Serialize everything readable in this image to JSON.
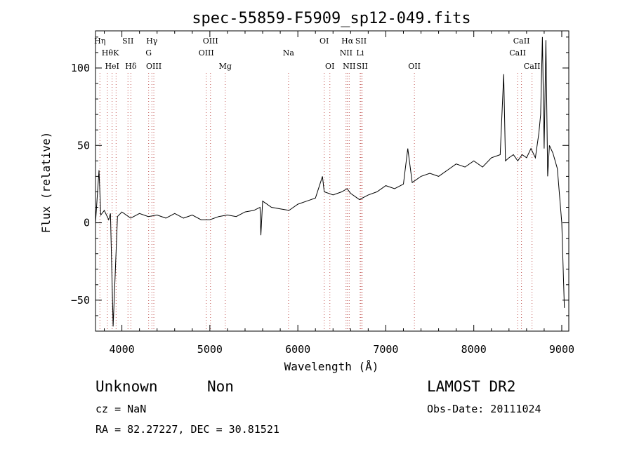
{
  "chart_data": {
    "type": "line",
    "title": "spec-55859-F5909_sp12-049.fits",
    "xlabel": "Wavelength (Å)",
    "ylabel": "Flux (relative)",
    "xlim": [
      3700,
      9080
    ],
    "ylim": [
      -70,
      124
    ],
    "xticks": [
      4000,
      5000,
      6000,
      7000,
      8000,
      9000
    ],
    "yticks": [
      -50,
      0,
      50,
      100
    ],
    "grid": false,
    "line_color": "#000000",
    "marker_color": "#c0504d",
    "series": [
      {
        "x": [
          3700,
          3740,
          3760,
          3800,
          3850,
          3870,
          3900,
          3950,
          4000,
          4100,
          4200,
          4300,
          4400,
          4500,
          4600,
          4700,
          4800,
          4900,
          5000,
          5100,
          5200,
          5300,
          5400,
          5500,
          5570,
          5580,
          5600,
          5700,
          5800,
          5900,
          6000,
          6100,
          6200,
          6280,
          6300,
          6400,
          6500,
          6560,
          6600,
          6700,
          6800,
          6900,
          7000,
          7100,
          7200,
          7250,
          7300,
          7400,
          7500,
          7600,
          7700,
          7800,
          7900,
          8000,
          8100,
          8200,
          8300,
          8340,
          8360,
          8400,
          8450,
          8500,
          8550,
          8600,
          8650,
          8700,
          8740,
          8760,
          8780,
          8800,
          8820,
          8840,
          8860,
          8900,
          8950,
          9000,
          9030
        ],
        "y": [
          0,
          34,
          5,
          8,
          2,
          6,
          -67,
          4,
          7,
          3,
          6,
          4,
          5,
          3,
          6,
          3,
          5,
          2,
          2,
          4,
          5,
          4,
          7,
          8,
          10,
          -8,
          14,
          10,
          9,
          8,
          12,
          14,
          16,
          30,
          20,
          18,
          20,
          22,
          19,
          15,
          18,
          20,
          24,
          22,
          25,
          48,
          26,
          30,
          32,
          30,
          34,
          38,
          36,
          40,
          36,
          42,
          44,
          96,
          40,
          42,
          44,
          40,
          44,
          42,
          48,
          42,
          58,
          70,
          120,
          48,
          118,
          30,
          50,
          45,
          35,
          0,
          -55
        ]
      }
    ],
    "lines": [
      {
        "x": 3750,
        "label": "Hη",
        "row": 1
      },
      {
        "x": 3835,
        "label": "Hθ",
        "row": 2
      },
      {
        "x": 3889,
        "label": "HeI",
        "row": 3
      },
      {
        "x": 3934,
        "label": "K",
        "row": 2
      },
      {
        "x": 4069,
        "label": "SII",
        "row": 1
      },
      {
        "x": 4102,
        "label": "Hδ",
        "row": 3
      },
      {
        "x": 4304,
        "label": "G",
        "row": 2
      },
      {
        "x": 4341,
        "label": "Hγ",
        "row": 1
      },
      {
        "x": 4363,
        "label": "OIII",
        "row": 3
      },
      {
        "x": 4959,
        "label": "OIII",
        "row": 2
      },
      {
        "x": 5007,
        "label": "OIII",
        "row": 1
      },
      {
        "x": 5175,
        "label": "Mg",
        "row": 3
      },
      {
        "x": 5894,
        "label": "Na",
        "row": 2
      },
      {
        "x": 6300,
        "label": "OI",
        "row": 1
      },
      {
        "x": 6364,
        "label": "OI",
        "row": 3
      },
      {
        "x": 6548,
        "label": "NII",
        "row": 2
      },
      {
        "x": 6563,
        "label": "Hα",
        "row": 1
      },
      {
        "x": 6584,
        "label": "NII",
        "row": 3
      },
      {
        "x": 6708,
        "label": "Li",
        "row": 2
      },
      {
        "x": 6717,
        "label": "SII",
        "row": 1
      },
      {
        "x": 6731,
        "label": "SII",
        "row": 3
      },
      {
        "x": 7325,
        "label": "OII",
        "row": 3
      },
      {
        "x": 8498,
        "label": "CaII",
        "row": 2
      },
      {
        "x": 8542,
        "label": "CaII",
        "row": 1
      },
      {
        "x": 8662,
        "label": "CaII",
        "row": 3
      }
    ]
  },
  "info": {
    "class_label": "Unknown",
    "subclass_label": "Non",
    "cz_text": "cz = NaN",
    "radec_text": "RA =  82.27227, DEC =  30.81521",
    "survey": "LAMOST DR2",
    "obs_date": "Obs-Date: 20111024"
  }
}
